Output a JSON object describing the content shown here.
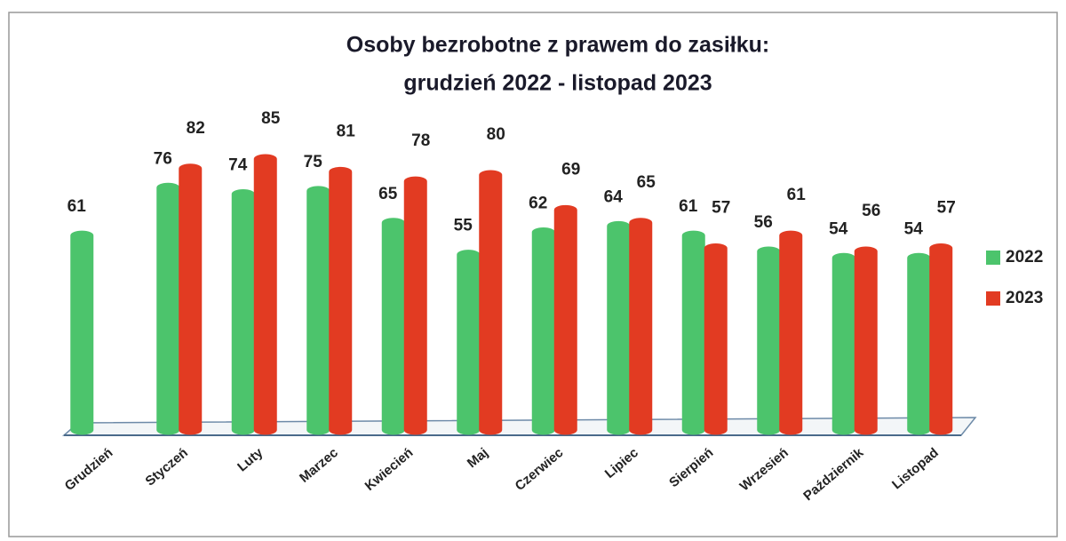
{
  "chart_data": {
    "type": "bar",
    "title": "Osoby bezrobotne z prawem do zasiłku:",
    "subtitle": "grudzień 2022 - listopad 2023",
    "categories": [
      "Grudzień",
      "Styczeń",
      "Luty",
      "Marzec",
      "Kwiecień",
      "Maj",
      "Czerwiec",
      "Lipiec",
      "Sierpień",
      "Wrzesień",
      "Październik",
      "Listopad"
    ],
    "series": [
      {
        "name": "2022",
        "color": "#4cc46c",
        "values": [
          61,
          76,
          74,
          75,
          65,
          55,
          62,
          64,
          61,
          56,
          54,
          54
        ]
      },
      {
        "name": "2023",
        "color": "#e23b22",
        "values": [
          null,
          82,
          85,
          81,
          78,
          80,
          69,
          65,
          57,
          61,
          56,
          57
        ]
      }
    ],
    "legend": "right"
  }
}
